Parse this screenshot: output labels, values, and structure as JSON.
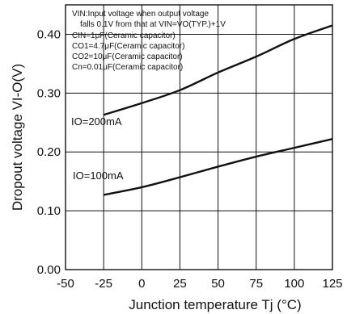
{
  "chart_data": {
    "type": "line",
    "xlabel": "Junction temperature Tj (°C)",
    "ylabel": "Dropout voltage VI-O(V)",
    "xlim": [
      -50,
      125
    ],
    "ylim": [
      0.0,
      0.45
    ],
    "x_ticks": [
      "-50",
      "-25",
      "0",
      "25",
      "50",
      "75",
      "100",
      "125"
    ],
    "y_ticks": [
      "0.00",
      "0.10",
      "0.20",
      "0.30",
      "0.40"
    ],
    "grid": true,
    "notes": [
      "VIN:Input voltage when output voltage",
      "falls 0.1V from that at VIN=VO(TYP.)+1V",
      "CIN=1μF(Ceramic capacitor)",
      "CO1=4.7μF(Ceramic capacitor)",
      "CO2=10μF(Ceramic capacitor)",
      "Cn=0.01μF(Ceramic capacitor)"
    ],
    "series": [
      {
        "name": "IO=200mA",
        "x": [
          -25,
          0,
          25,
          50,
          75,
          100,
          125
        ],
        "y": [
          0.263,
          0.283,
          0.305,
          0.335,
          0.362,
          0.392,
          0.415
        ]
      },
      {
        "name": "IO=100mA",
        "x": [
          -25,
          0,
          25,
          50,
          75,
          100,
          125
        ],
        "y": [
          0.127,
          0.14,
          0.157,
          0.175,
          0.192,
          0.207,
          0.222
        ]
      }
    ]
  }
}
